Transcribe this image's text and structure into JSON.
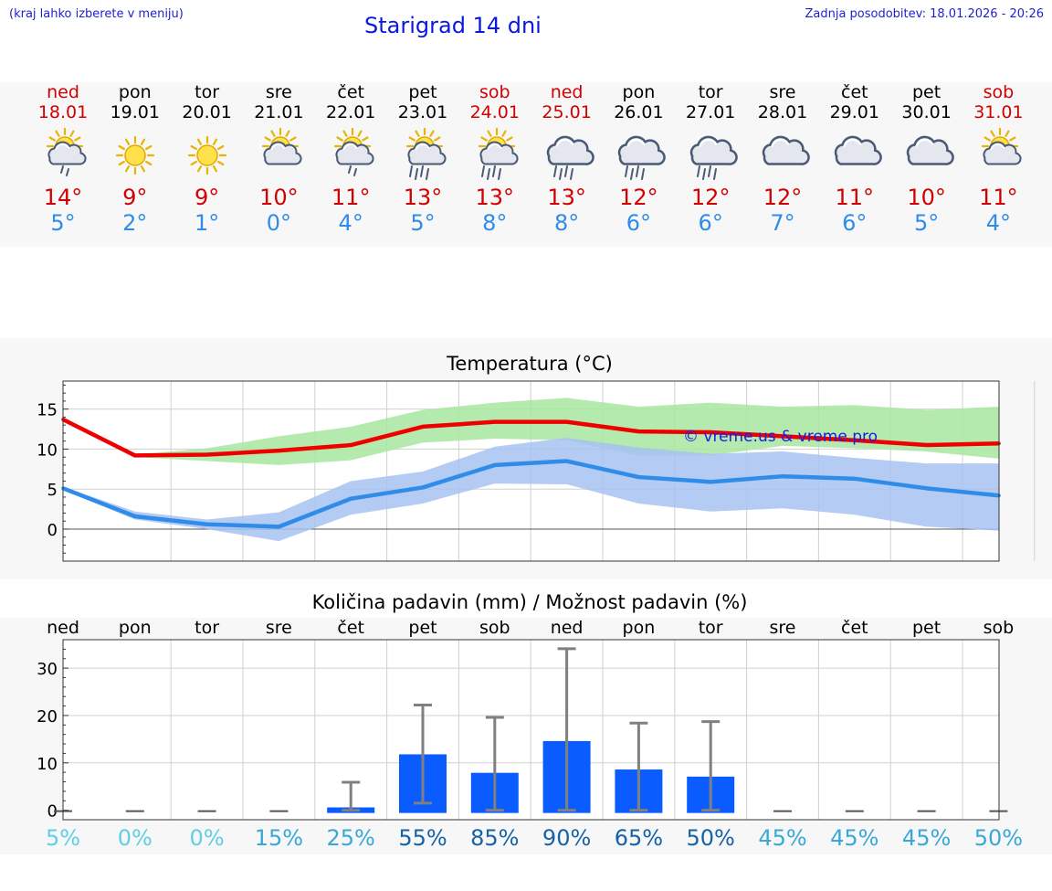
{
  "header": {
    "hint": "(kraj lahko izberete v meniju)",
    "title": "Starigrad 14 dni",
    "updated": "Zadnja posodobitev: 18.01.2026 - 20:26"
  },
  "days": [
    {
      "name": "ned",
      "date": "18.01",
      "weekend": true,
      "icon": "sun-cloud-showers",
      "max": "14°",
      "min": "5°"
    },
    {
      "name": "pon",
      "date": "19.01",
      "weekend": false,
      "icon": "sun",
      "max": "9°",
      "min": "2°"
    },
    {
      "name": "tor",
      "date": "20.01",
      "weekend": false,
      "icon": "sun",
      "max": "9°",
      "min": "1°"
    },
    {
      "name": "sre",
      "date": "21.01",
      "weekend": false,
      "icon": "sun-cloud",
      "max": "10°",
      "min": "0°"
    },
    {
      "name": "čet",
      "date": "22.01",
      "weekend": false,
      "icon": "sun-cloud-showers",
      "max": "11°",
      "min": "4°"
    },
    {
      "name": "pet",
      "date": "23.01",
      "weekend": false,
      "icon": "sun-cloud-rain",
      "max": "13°",
      "min": "5°"
    },
    {
      "name": "sob",
      "date": "24.01",
      "weekend": true,
      "icon": "sun-cloud-rain",
      "max": "13°",
      "min": "8°"
    },
    {
      "name": "ned",
      "date": "25.01",
      "weekend": true,
      "icon": "cloud-rain",
      "max": "13°",
      "min": "8°"
    },
    {
      "name": "pon",
      "date": "26.01",
      "weekend": false,
      "icon": "cloud-rain",
      "max": "12°",
      "min": "6°"
    },
    {
      "name": "tor",
      "date": "27.01",
      "weekend": false,
      "icon": "cloud-rain",
      "max": "12°",
      "min": "6°"
    },
    {
      "name": "sre",
      "date": "28.01",
      "weekend": false,
      "icon": "cloud",
      "max": "12°",
      "min": "7°"
    },
    {
      "name": "čet",
      "date": "29.01",
      "weekend": false,
      "icon": "cloud",
      "max": "11°",
      "min": "6°"
    },
    {
      "name": "pet",
      "date": "30.01",
      "weekend": false,
      "icon": "cloud",
      "max": "10°",
      "min": "5°"
    },
    {
      "name": "sob",
      "date": "31.01",
      "weekend": true,
      "icon": "sun-cloud",
      "max": "11°",
      "min": "4°"
    }
  ],
  "watermark": "© vreme.us & vreme.pro",
  "chart_data": [
    {
      "type": "line",
      "title": "Temperatura (°C)",
      "x_index": [
        0,
        1,
        2,
        3,
        4,
        5,
        6,
        7,
        8,
        9,
        10,
        11,
        12,
        13
      ],
      "ylim": [
        -4,
        18.5
      ],
      "yticks": [
        0,
        5,
        10,
        15
      ],
      "grid": true,
      "series": [
        {
          "name": "max",
          "color": "#ee0000",
          "values": [
            13.7,
            9.2,
            9.3,
            9.8,
            10.5,
            12.8,
            13.4,
            13.4,
            12.2,
            12.1,
            11.6,
            11.1,
            10.5,
            10.7
          ]
        },
        {
          "name": "min",
          "color": "#2f8ce8",
          "values": [
            5.1,
            1.6,
            0.6,
            0.3,
            3.8,
            5.2,
            8.0,
            8.5,
            6.5,
            5.9,
            6.6,
            6.3,
            5.1,
            4.2
          ]
        }
      ],
      "bands": [
        {
          "name": "max-range",
          "color": "#a8e6a0",
          "upper": [
            13.9,
            9.3,
            10.1,
            11.6,
            12.8,
            14.9,
            15.8,
            16.4,
            15.3,
            15.8,
            15.3,
            15.5,
            14.9,
            15.3
          ],
          "lower": [
            13.5,
            9.0,
            8.5,
            8.0,
            8.6,
            10.8,
            11.3,
            11.1,
            9.2,
            9.2,
            10.4,
            10.1,
            9.7,
            8.8
          ]
        },
        {
          "name": "min-range",
          "color": "#a7c2f2",
          "upper": [
            5.3,
            2.2,
            1.2,
            2.1,
            6.0,
            7.2,
            10.3,
            11.4,
            10.2,
            9.4,
            9.7,
            8.9,
            8.2,
            8.2
          ],
          "lower": [
            4.9,
            1.2,
            0.0,
            -1.5,
            1.8,
            3.2,
            5.7,
            5.6,
            3.2,
            2.2,
            2.6,
            1.8,
            0.3,
            -0.2
          ]
        }
      ]
    },
    {
      "type": "bar",
      "title": "Količina padavin (mm) / Možnost padavin (%)",
      "categories": [
        "ned",
        "pon",
        "tor",
        "sre",
        "čet",
        "pet",
        "sob",
        "ned",
        "pon",
        "tor",
        "sre",
        "čet",
        "pet",
        "sob"
      ],
      "values": [
        0,
        0,
        0,
        0,
        0.6,
        11.8,
        7.9,
        14.6,
        8.6,
        7.1,
        0,
        0,
        0,
        0
      ],
      "error_upper": [
        0,
        0,
        0,
        0,
        5.9,
        22.2,
        19.6,
        34.1,
        18.4,
        18.7,
        0,
        0,
        0,
        0
      ],
      "error_lower": [
        0,
        0,
        0,
        0,
        0,
        1.5,
        0,
        0,
        0,
        0,
        0,
        0,
        0,
        0
      ],
      "ylim": [
        -2,
        36
      ],
      "yticks": [
        0,
        10,
        20,
        30
      ],
      "bar_color": "#0a5cff",
      "error_color": "#808080",
      "probabilities": [
        "5%",
        "0%",
        "0%",
        "15%",
        "25%",
        "55%",
        "85%",
        "90%",
        "65%",
        "50%",
        "45%",
        "45%",
        "45%",
        "50%"
      ],
      "probability_colors": [
        "#5fcfe4",
        "#5fcfe4",
        "#5fcfe4",
        "#38a8d8",
        "#38a8d8",
        "#1562a8",
        "#1562a8",
        "#1562a8",
        "#1562a8",
        "#1562a8",
        "#38a8d8",
        "#38a8d8",
        "#38a8d8",
        "#38a8d8"
      ]
    }
  ]
}
